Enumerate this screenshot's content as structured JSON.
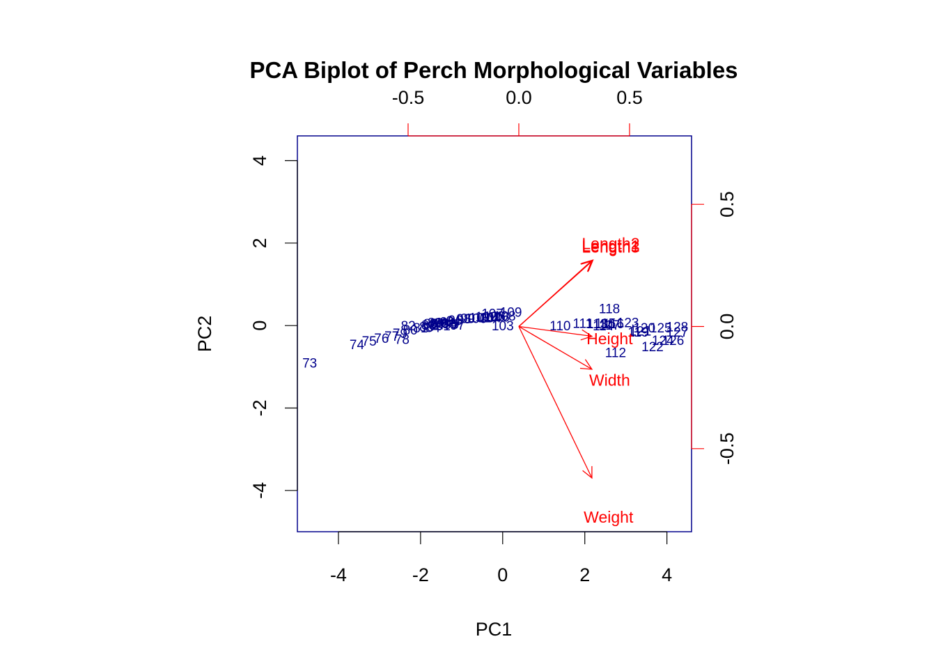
{
  "chart_data": {
    "type": "scatter",
    "subtype": "biplot",
    "title": "PCA Biplot of Perch Morphological Variables",
    "xlabel": "PC1",
    "ylabel": "PC2",
    "score_axes": {
      "xlim": [
        -5.0,
        4.6
      ],
      "ylim": [
        -5.0,
        4.6
      ],
      "x_ticks": [
        -4,
        -2,
        0,
        2,
        4
      ],
      "y_ticks": [
        -4,
        -2,
        0,
        2,
        4
      ]
    },
    "loading_axes": {
      "xlim": [
        -1.0,
        0.78
      ],
      "ylim": [
        -0.84,
        0.78
      ],
      "x_ticks": [
        -0.5,
        0.0,
        0.5
      ],
      "y_ticks": [
        -0.5,
        0.0,
        0.5
      ],
      "x_tick_labels": [
        "-0.5",
        "0.0",
        "0.5"
      ],
      "y_tick_labels": [
        "-0.5",
        "0.0",
        "0.5"
      ]
    },
    "colors": {
      "frame": "#00008B",
      "observations": "#00008B",
      "loadings": "#FF0000"
    },
    "observations": [
      {
        "label": "73",
        "pc1": -4.7,
        "pc2": -0.9
      },
      {
        "label": "74",
        "pc1": -3.55,
        "pc2": -0.45
      },
      {
        "label": "75",
        "pc1": -3.25,
        "pc2": -0.37
      },
      {
        "label": "76",
        "pc1": -2.95,
        "pc2": -0.3
      },
      {
        "label": "77",
        "pc1": -2.7,
        "pc2": -0.25
      },
      {
        "label": "78",
        "pc1": -2.45,
        "pc2": -0.33
      },
      {
        "label": "79",
        "pc1": -2.5,
        "pc2": -0.18
      },
      {
        "label": "80",
        "pc1": -2.25,
        "pc2": -0.1
      },
      {
        "label": "81",
        "pc1": -2.0,
        "pc2": -0.05
      },
      {
        "label": "82",
        "pc1": -2.3,
        "pc2": 0.0
      },
      {
        "label": "83",
        "pc1": -1.8,
        "pc2": 0.02
      },
      {
        "label": "84",
        "pc1": -1.7,
        "pc2": -0.04
      },
      {
        "label": "85",
        "pc1": -1.75,
        "pc2": 0.05
      },
      {
        "label": "86",
        "pc1": -1.65,
        "pc2": 0.08
      },
      {
        "label": "87",
        "pc1": -1.55,
        "pc2": 0.03
      },
      {
        "label": "88",
        "pc1": -1.85,
        "pc2": -0.02
      },
      {
        "label": "89",
        "pc1": -1.6,
        "pc2": 0.06
      },
      {
        "label": "90",
        "pc1": -1.5,
        "pc2": 0.07
      },
      {
        "label": "91",
        "pc1": -1.45,
        "pc2": 0.0
      },
      {
        "label": "92",
        "pc1": -1.35,
        "pc2": 0.1
      },
      {
        "label": "93",
        "pc1": -1.3,
        "pc2": 0.05
      },
      {
        "label": "94",
        "pc1": -1.2,
        "pc2": 0.12
      },
      {
        "label": "95",
        "pc1": -1.25,
        "pc2": 0.04
      },
      {
        "label": "96",
        "pc1": -1.15,
        "pc2": 0.14
      },
      {
        "label": "97",
        "pc1": -1.1,
        "pc2": 0.02
      },
      {
        "label": "98",
        "pc1": -0.95,
        "pc2": 0.17
      },
      {
        "label": "99",
        "pc1": -0.85,
        "pc2": 0.18
      },
      {
        "label": "100",
        "pc1": -0.65,
        "pc2": 0.18
      },
      {
        "label": "101",
        "pc1": -0.55,
        "pc2": 0.2
      },
      {
        "label": "102",
        "pc1": -0.4,
        "pc2": 0.22
      },
      {
        "label": "103",
        "pc1": 0.0,
        "pc2": 0.0
      },
      {
        "label": "104",
        "pc1": -0.3,
        "pc2": 0.2
      },
      {
        "label": "105",
        "pc1": -0.2,
        "pc2": 0.23
      },
      {
        "label": "106",
        "pc1": -0.1,
        "pc2": 0.21
      },
      {
        "label": "107",
        "pc1": -0.25,
        "pc2": 0.3
      },
      {
        "label": "108",
        "pc1": 0.05,
        "pc2": 0.24
      },
      {
        "label": "109",
        "pc1": 0.2,
        "pc2": 0.33
      },
      {
        "label": "110",
        "pc1": 1.4,
        "pc2": 0.0
      },
      {
        "label": "111",
        "pc1": 1.95,
        "pc2": 0.06
      },
      {
        "label": "112",
        "pc1": 2.75,
        "pc2": -0.65
      },
      {
        "label": "113",
        "pc1": 2.3,
        "pc2": 0.05
      },
      {
        "label": "114",
        "pc1": 2.45,
        "pc2": 0.0
      },
      {
        "label": "115",
        "pc1": 2.5,
        "pc2": 0.06
      },
      {
        "label": "116",
        "pc1": 2.7,
        "pc2": 0.05
      },
      {
        "label": "117",
        "pc1": 2.6,
        "pc2": 0.02
      },
      {
        "label": "118",
        "pc1": 2.6,
        "pc2": 0.42
      },
      {
        "label": "119",
        "pc1": 3.3,
        "pc2": -0.15
      },
      {
        "label": "120",
        "pc1": 3.45,
        "pc2": -0.05
      },
      {
        "label": "121",
        "pc1": 3.35,
        "pc2": -0.12
      },
      {
        "label": "122",
        "pc1": 3.65,
        "pc2": -0.5
      },
      {
        "label": "123",
        "pc1": 3.05,
        "pc2": 0.08
      },
      {
        "label": "124",
        "pc1": 3.9,
        "pc2": -0.35
      },
      {
        "label": "125",
        "pc1": 3.85,
        "pc2": -0.05
      },
      {
        "label": "126",
        "pc1": 4.15,
        "pc2": -0.35
      },
      {
        "label": "127",
        "pc1": 4.25,
        "pc2": -0.15
      },
      {
        "label": "128",
        "pc1": 4.25,
        "pc2": -0.02
      }
    ],
    "loadings": [
      {
        "name": "Length1",
        "x": 0.33,
        "y": 0.27
      },
      {
        "name": "Length2",
        "x": 0.335,
        "y": 0.272
      },
      {
        "name": "Length3",
        "x": 0.332,
        "y": 0.268
      },
      {
        "name": "Height",
        "x": 0.33,
        "y": -0.04
      },
      {
        "name": "Width",
        "x": 0.33,
        "y": -0.175
      },
      {
        "name": "Weight",
        "x": 0.33,
        "y": -0.62
      }
    ],
    "loading_labels": [
      {
        "text": "Length2",
        "x": 0.415,
        "y": 0.34
      },
      {
        "text": "Length3",
        "x": 0.415,
        "y": 0.325
      },
      {
        "text": "Length1",
        "x": 0.415,
        "y": 0.33
      },
      {
        "text": "Height",
        "x": 0.41,
        "y": -0.05
      },
      {
        "text": "Width",
        "x": 0.41,
        "y": -0.22
      },
      {
        "text": "Weight",
        "x": 0.405,
        "y": -0.78
      }
    ]
  }
}
